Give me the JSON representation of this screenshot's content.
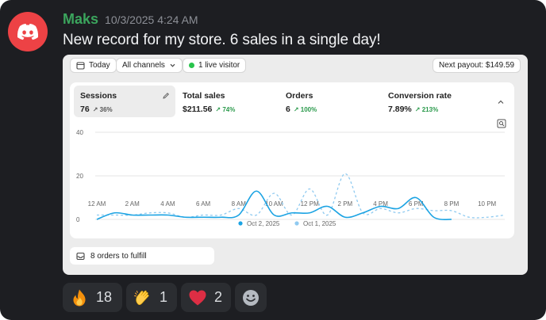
{
  "message": {
    "author": "Maks",
    "timestamp": "10/3/2025 4:24 AM",
    "text": "New record for my store. 6 sales in a single day!"
  },
  "colors": {
    "background": "#1d1e22",
    "author": "#3ba55d",
    "avatar": "#ed4245",
    "series_current": "#1ba3e3",
    "series_previous": "#8fcaf0",
    "positive_change": "#2b9a4c"
  },
  "dashboard": {
    "date_filter": "Today",
    "channel_filter": "All channels",
    "live_visitors": "1 live visitor",
    "next_payout": "Next payout: $149.59",
    "metrics": [
      {
        "label": "Sessions",
        "value": "76",
        "change": "36%"
      },
      {
        "label": "Total sales",
        "value": "$211.56",
        "change": "74%"
      },
      {
        "label": "Orders",
        "value": "6",
        "change": "100%"
      },
      {
        "label": "Conversion rate",
        "value": "7.89%",
        "change": "213%"
      }
    ],
    "fulfill_text": "8 orders to fulfill"
  },
  "chart_data": {
    "type": "line",
    "x": [
      "12 AM",
      "1 AM",
      "2 AM",
      "3 AM",
      "4 AM",
      "5 AM",
      "6 AM",
      "7 AM",
      "8 AM",
      "9 AM",
      "10 AM",
      "11 AM",
      "12 PM",
      "1 PM",
      "2 PM",
      "3 PM",
      "4 PM",
      "5 PM",
      "6 PM",
      "7 PM",
      "8 PM",
      "9 PM",
      "10 PM",
      "11 PM"
    ],
    "x_tick_labels": [
      "12 AM",
      "2 AM",
      "4 AM",
      "6 AM",
      "8 AM",
      "10 AM",
      "12 PM",
      "2 PM",
      "4 PM",
      "6 PM",
      "8 PM",
      "10 PM"
    ],
    "y_ticks": [
      0,
      20,
      40
    ],
    "ylim": [
      0,
      40
    ],
    "series": [
      {
        "name": "Oct 2, 2025",
        "values": [
          0,
          3,
          2,
          2,
          2,
          1,
          1,
          1,
          2,
          13,
          2,
          3,
          3,
          6,
          1,
          3,
          6,
          5,
          10,
          1,
          0,
          null,
          null,
          null
        ]
      },
      {
        "name": "Oct 1, 2025",
        "values": [
          2,
          2,
          2,
          3,
          3,
          1,
          2,
          2,
          5,
          2,
          12,
          2,
          14,
          2,
          21,
          3,
          5,
          3,
          5,
          4,
          4,
          1,
          1,
          2
        ]
      }
    ],
    "legend_position": "bottom",
    "grid": true
  },
  "reactions": [
    {
      "emoji": "fire-emoji",
      "count": "18"
    },
    {
      "emoji": "clapping-hands-emoji",
      "count": "1"
    },
    {
      "emoji": "red-heart-emoji",
      "count": "2"
    },
    {
      "emoji": "add-reaction-icon",
      "count": ""
    }
  ]
}
